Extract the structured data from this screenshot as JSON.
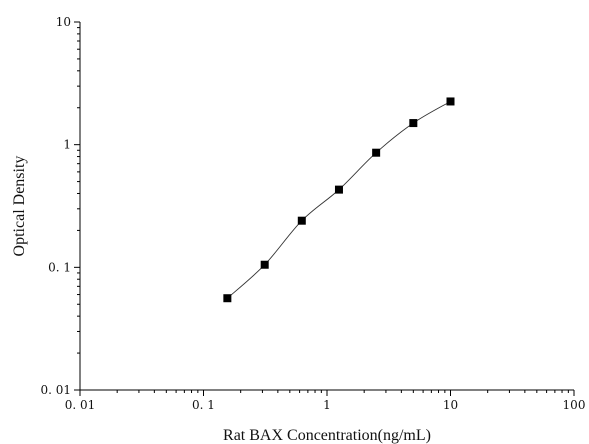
{
  "chart_data": {
    "type": "scatter",
    "xlabel": "Rat BAX Concentration(ng/mL)",
    "ylabel": "Optical Density",
    "xscale": "log",
    "yscale": "log",
    "xlim": [
      0.01,
      100
    ],
    "ylim": [
      0.01,
      10
    ],
    "x_ticks": [
      0.01,
      0.1,
      1,
      10,
      100
    ],
    "x_tick_labels": [
      "0. 01",
      "0. 1",
      "1",
      "10",
      "100"
    ],
    "y_ticks": [
      0.01,
      0.1,
      1,
      10
    ],
    "y_tick_labels": [
      "0. 01",
      "0. 1",
      "1",
      "10"
    ],
    "grid": false,
    "series": [
      {
        "x": [
          0.156,
          0.313,
          0.625,
          1.25,
          2.5,
          5,
          10
        ],
        "y": [
          0.056,
          0.105,
          0.24,
          0.43,
          0.86,
          1.5,
          2.25
        ],
        "marker": "square",
        "color": "#000000",
        "fit_line": true
      }
    ]
  }
}
